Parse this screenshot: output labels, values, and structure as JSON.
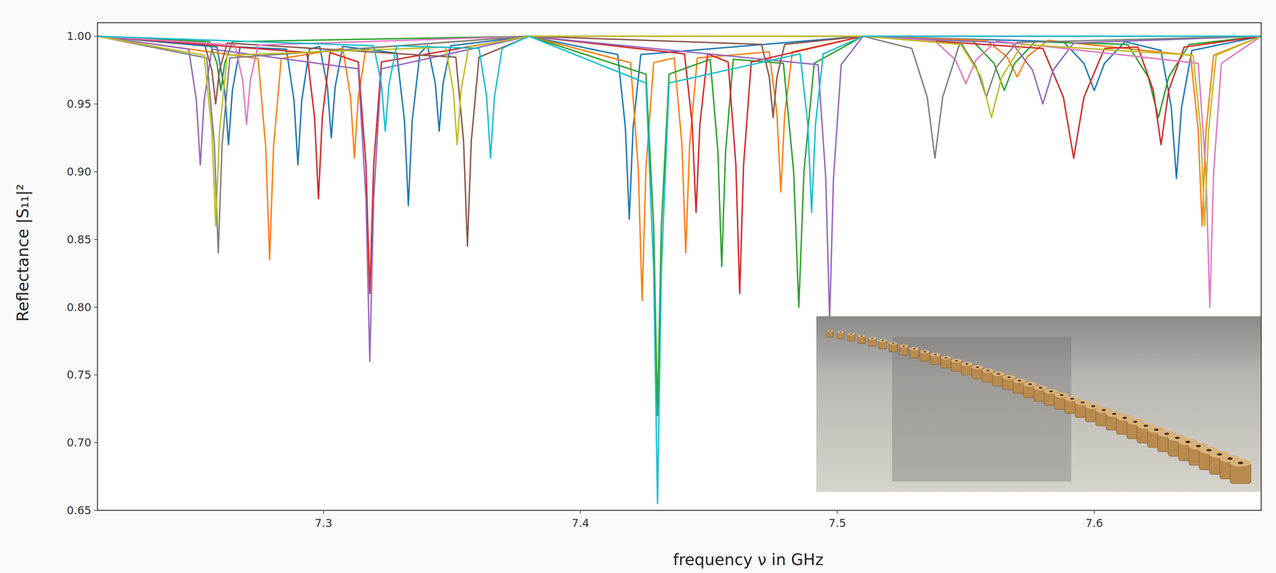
{
  "chart_data": {
    "type": "line",
    "x_label": "frequency ν in GHz",
    "y_label": "Reflectance |S₁₁|²",
    "xlim": [
      7.212,
      7.665
    ],
    "ylim": [
      0.65,
      1.01
    ],
    "xticks": [
      7.3,
      7.4,
      7.5,
      7.6
    ],
    "yticks": [
      {
        "value": 0.65,
        "label": "0.65"
      },
      {
        "value": 0.7,
        "label": "0.70"
      },
      {
        "value": 0.75,
        "label": "0.75"
      },
      {
        "value": 0.8,
        "label": "0.80"
      },
      {
        "value": 0.85,
        "label": "0.85"
      },
      {
        "value": 0.9,
        "label": "0.90"
      },
      {
        "value": 0.95,
        "label": "0.95"
      },
      {
        "value": 1.0,
        "label": "1.00"
      }
    ],
    "grid": false,
    "series": [
      {
        "color": "#1f77b4",
        "x": [
          7.212,
          7.2585,
          7.2615,
          7.263,
          7.2645,
          7.2675,
          7.2855,
          7.2885,
          7.29,
          7.2915,
          7.2945,
          7.2985,
          7.3015,
          7.303,
          7.3045,
          7.3075,
          7.3285,
          7.3315,
          7.333,
          7.3345,
          7.3375,
          7.3405,
          7.3435,
          7.345,
          7.3465,
          7.3495,
          7.38,
          7.4145,
          7.4175,
          7.419,
          7.4205,
          7.4235,
          7.51,
          7.588,
          7.596,
          7.6,
          7.604,
          7.612,
          7.626,
          7.63,
          7.632,
          7.634,
          7.638,
          7.665
        ],
        "values": [
          1.0,
          0.992,
          0.96,
          0.92,
          0.96,
          0.992,
          0.9905,
          0.9525,
          0.905,
          0.9525,
          0.9905,
          0.9925,
          0.9625,
          0.925,
          0.9625,
          0.9925,
          0.9875,
          0.9375,
          0.875,
          0.9375,
          0.9875,
          0.993,
          0.965,
          0.93,
          0.965,
          0.993,
          1.0,
          0.9865,
          0.9325,
          0.865,
          0.9325,
          0.9865,
          1.0,
          0.996,
          0.98,
          0.96,
          0.98,
          0.996,
          0.9895,
          0.9475,
          0.895,
          0.9475,
          0.9895,
          1.0
        ]
      },
      {
        "color": "#ff7f0e",
        "x": [
          7.212,
          7.2745,
          7.2775,
          7.279,
          7.2805,
          7.2835,
          7.3075,
          7.3105,
          7.312,
          7.3135,
          7.3165,
          7.38,
          7.4195,
          7.4225,
          7.424,
          7.4255,
          7.4285,
          7.4365,
          7.4395,
          7.441,
          7.4425,
          7.4455,
          7.4735,
          7.4765,
          7.478,
          7.4795,
          7.4825,
          7.51,
          7.558,
          7.566,
          7.57,
          7.574,
          7.582,
          7.6375,
          7.6405,
          7.642,
          7.6435,
          7.6465,
          7.665
        ],
        "values": [
          1.0,
          0.9835,
          0.9175,
          0.835,
          0.9175,
          0.9835,
          0.991,
          0.955,
          0.91,
          0.955,
          0.991,
          1.0,
          0.9805,
          0.9025,
          0.805,
          0.9025,
          0.9805,
          0.984,
          0.92,
          0.84,
          0.92,
          0.984,
          0.9885,
          0.9425,
          0.885,
          0.9425,
          0.9885,
          1.0,
          0.997,
          0.985,
          0.97,
          0.985,
          0.997,
          0.986,
          0.93,
          0.86,
          0.93,
          0.986,
          1.0
        ]
      },
      {
        "color": "#2ca02c",
        "x": [
          7.212,
          7.2555,
          7.2585,
          7.26,
          7.2615,
          7.2645,
          7.38,
          7.4255,
          7.4285,
          7.43,
          7.4315,
          7.4345,
          7.4505,
          7.4535,
          7.455,
          7.4565,
          7.4595,
          7.479,
          7.483,
          7.485,
          7.487,
          7.491,
          7.51,
          7.553,
          7.561,
          7.565,
          7.569,
          7.577,
          7.613,
          7.621,
          7.625,
          7.629,
          7.637,
          7.665
        ],
        "values": [
          1.0,
          0.996,
          0.98,
          0.96,
          0.98,
          0.996,
          1.0,
          0.972,
          0.86,
          0.72,
          0.86,
          0.972,
          0.983,
          0.915,
          0.83,
          0.915,
          0.983,
          0.98,
          0.9,
          0.8,
          0.9,
          0.98,
          1.0,
          0.996,
          0.98,
          0.96,
          0.98,
          0.996,
          0.994,
          0.97,
          0.94,
          0.97,
          0.994,
          1.0
        ]
      },
      {
        "color": "#d62728",
        "x": [
          7.212,
          7.2935,
          7.2965,
          7.298,
          7.2995,
          7.3025,
          7.3135,
          7.3165,
          7.318,
          7.3195,
          7.3225,
          7.38,
          7.4405,
          7.4435,
          7.445,
          7.4465,
          7.4495,
          7.4575,
          7.4605,
          7.462,
          7.4635,
          7.4665,
          7.51,
          7.58,
          7.588,
          7.592,
          7.596,
          7.604,
          7.617,
          7.623,
          7.626,
          7.629,
          7.635,
          7.665
        ],
        "values": [
          1.0,
          0.988,
          0.94,
          0.88,
          0.94,
          0.988,
          0.981,
          0.905,
          0.81,
          0.905,
          0.981,
          1.0,
          0.987,
          0.935,
          0.87,
          0.935,
          0.987,
          0.981,
          0.905,
          0.81,
          0.905,
          0.981,
          1.0,
          0.991,
          0.955,
          0.91,
          0.955,
          0.991,
          0.992,
          0.96,
          0.92,
          0.96,
          0.992,
          1.0
        ]
      },
      {
        "color": "#9467bd",
        "x": [
          7.212,
          7.2475,
          7.2505,
          7.252,
          7.2535,
          7.2565,
          7.3135,
          7.3165,
          7.318,
          7.3195,
          7.3225,
          7.38,
          7.4925,
          7.4955,
          7.497,
          7.4985,
          7.5015,
          7.51,
          7.568,
          7.576,
          7.58,
          7.584,
          7.592,
          7.665
        ],
        "values": [
          1.0,
          0.9905,
          0.9525,
          0.905,
          0.9525,
          0.9905,
          0.976,
          0.88,
          0.76,
          0.88,
          0.976,
          1.0,
          0.979,
          0.895,
          0.79,
          0.895,
          0.979,
          1.0,
          0.995,
          0.975,
          0.95,
          0.975,
          0.995,
          1.0
        ]
      },
      {
        "color": "#8c564b",
        "x": [
          7.212,
          7.2535,
          7.2565,
          7.258,
          7.2595,
          7.2625,
          7.3515,
          7.3545,
          7.356,
          7.3575,
          7.3605,
          7.38,
          7.4705,
          7.4735,
          7.475,
          7.4765,
          7.4795,
          7.51,
          7.665
        ],
        "values": [
          1.0,
          0.995,
          0.975,
          0.95,
          0.975,
          0.995,
          0.9845,
          0.9225,
          0.845,
          0.9225,
          0.9845,
          1.0,
          0.994,
          0.97,
          0.94,
          0.97,
          0.994,
          1.0,
          1.0
        ]
      },
      {
        "color": "#e377c2",
        "x": [
          7.212,
          7.2655,
          7.2685,
          7.27,
          7.2715,
          7.2745,
          7.38,
          7.51,
          7.538,
          7.546,
          7.55,
          7.554,
          7.562,
          7.6405,
          7.6435,
          7.645,
          7.6465,
          7.6495,
          7.665
        ],
        "values": [
          1.0,
          0.9935,
          0.9675,
          0.935,
          0.9675,
          0.9935,
          1.0,
          1.0,
          0.9965,
          0.9825,
          0.965,
          0.9825,
          0.9965,
          0.98,
          0.9,
          0.8,
          0.9,
          0.98,
          1.0
        ]
      },
      {
        "color": "#7f7f7f",
        "x": [
          7.212,
          7.2545,
          7.2575,
          7.259,
          7.2605,
          7.2635,
          7.38,
          7.51,
          7.529,
          7.535,
          7.538,
          7.541,
          7.547,
          7.548,
          7.554,
          7.558,
          7.562,
          7.57,
          7.665
        ],
        "values": [
          1.0,
          0.984,
          0.92,
          0.84,
          0.92,
          0.984,
          1.0,
          1.0,
          0.991,
          0.955,
          0.91,
          0.955,
          0.991,
          0.9955,
          0.9775,
          0.955,
          0.9775,
          0.9955,
          1.0
        ]
      },
      {
        "color": "#bcbd22",
        "x": [
          7.212,
          7.2535,
          7.2565,
          7.258,
          7.2595,
          7.2625,
          7.3475,
          7.3505,
          7.352,
          7.3535,
          7.3565,
          7.38,
          7.51,
          7.548,
          7.556,
          7.56,
          7.564,
          7.572,
          7.6385,
          7.6415,
          7.643,
          7.6445,
          7.6475,
          7.665
        ],
        "values": [
          1.0,
          0.986,
          0.93,
          0.86,
          0.93,
          0.986,
          0.992,
          0.96,
          0.92,
          0.96,
          0.992,
          1.0,
          1.0,
          0.994,
          0.97,
          0.94,
          0.97,
          0.994,
          0.986,
          0.93,
          0.86,
          0.93,
          0.986,
          1.0
        ]
      },
      {
        "color": "#17becf",
        "x": [
          7.212,
          7.3195,
          7.3225,
          7.324,
          7.3255,
          7.3285,
          7.3605,
          7.3635,
          7.365,
          7.3665,
          7.3695,
          7.38,
          7.4255,
          7.4285,
          7.43,
          7.4315,
          7.4345,
          7.4855,
          7.4885,
          7.49,
          7.4915,
          7.4945,
          7.51,
          7.665
        ],
        "values": [
          1.0,
          0.993,
          0.965,
          0.93,
          0.965,
          0.993,
          0.991,
          0.955,
          0.91,
          0.955,
          0.991,
          1.0,
          0.9655,
          0.8275,
          0.655,
          0.8275,
          0.9655,
          0.987,
          0.935,
          0.87,
          0.935,
          0.987,
          1.0,
          1.0
        ]
      }
    ]
  }
}
